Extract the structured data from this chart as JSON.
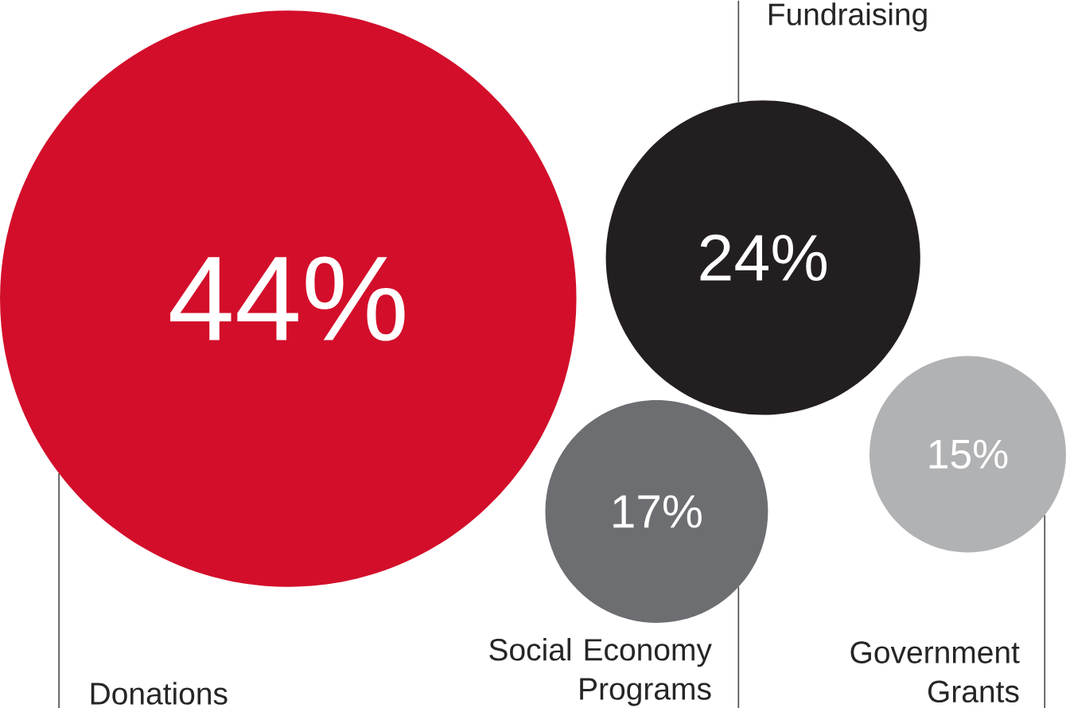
{
  "chart_data": {
    "type": "other",
    "categories": [
      "Donations",
      "Fundraising",
      "Social Economy Programs",
      "Government Grants"
    ],
    "values": [
      44,
      24,
      17,
      15
    ],
    "value_labels": [
      "44%",
      "24%",
      "17%",
      "15%"
    ],
    "colors": [
      "#d30e2a",
      "#231f20",
      "#6d6e71",
      "#b1b2b4"
    ]
  }
}
